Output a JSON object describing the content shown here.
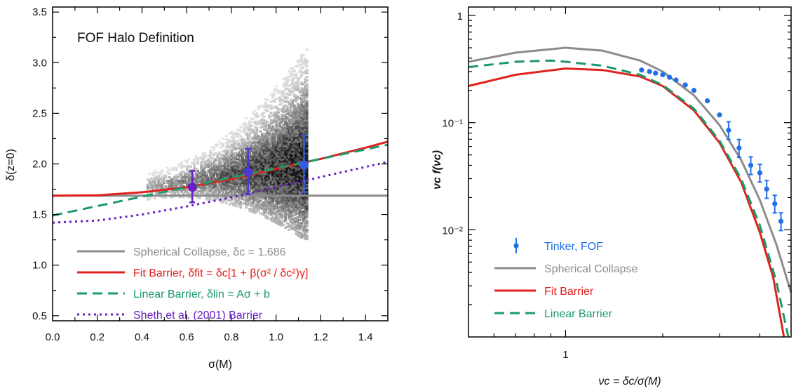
{
  "chart_data": [
    {
      "type": "scatter",
      "title": "FOF Halo Definition",
      "xlabel": "σ(M)",
      "ylabel": "δ(z=0)",
      "xlim": [
        0.0,
        1.5
      ],
      "ylim": [
        0.45,
        3.55
      ],
      "xticks": [
        "0.0",
        "0.2",
        "0.4",
        "0.6",
        "0.8",
        "1.0",
        "1.2",
        "1.4"
      ],
      "yticks": [
        "0.5",
        "1.0",
        "1.5",
        "2.0",
        "2.5",
        "3.0",
        "3.5"
      ],
      "legend_position": "bottom-left",
      "density_region": {
        "description_values": {
          "x_range": [
            0.42,
            1.14
          ],
          "y_center_at_x_min": 1.75,
          "y_center_at_x_max": 2.0
        }
      },
      "series": [
        {
          "name": "Spherical Collapse",
          "legend_label": "Spherical Collapse, δc = 1.686",
          "color": "#8c8c8c",
          "style": "solid",
          "x": [
            0.0,
            1.5
          ],
          "y": [
            1.686,
            1.686
          ]
        },
        {
          "name": "Fit Barrier",
          "legend_label": "Fit Barrier, δfit = δc[1 + β(σ² / δc²)γ]",
          "color": "#e0211d",
          "style": "solid",
          "x": [
            0.0,
            0.2,
            0.4,
            0.6,
            0.8,
            1.0,
            1.2,
            1.4,
            1.5
          ],
          "y": [
            1.686,
            1.69,
            1.72,
            1.77,
            1.85,
            1.95,
            2.05,
            2.16,
            2.22
          ]
        },
        {
          "name": "Linear Barrier",
          "legend_label": "Linear Barrier, δlin = Aσ + b",
          "color": "#1a9a6c",
          "style": "dashed",
          "x": [
            0.0,
            1.5
          ],
          "y": [
            1.49,
            2.19
          ]
        },
        {
          "name": "Sheth et al. (2001) Barrier",
          "legend_label": "Sheth et al. (2001) Barrier",
          "color": "#6a1fc4",
          "style": "dotted",
          "x": [
            0.0,
            0.2,
            0.4,
            0.6,
            0.8,
            1.0,
            1.2,
            1.4,
            1.5
          ],
          "y": [
            1.42,
            1.44,
            1.5,
            1.58,
            1.67,
            1.77,
            1.87,
            1.97,
            2.02
          ]
        }
      ],
      "points": [
        {
          "x": 0.625,
          "y": 1.77,
          "yerr_low": 1.62,
          "yerr_high": 1.93,
          "color": "#6a1fc4"
        },
        {
          "x": 0.875,
          "y": 1.92,
          "yerr_low": 1.7,
          "yerr_high": 2.15,
          "color": "#4a3ad6"
        },
        {
          "x": 1.125,
          "y": 1.99,
          "yerr_low": 1.72,
          "yerr_high": 2.28,
          "color": "#2f5ee0"
        }
      ]
    },
    {
      "type": "line",
      "title": "",
      "xlabel": "νc = δc/σ(M)",
      "ylabel": "νc f(νc)",
      "xscale": "log",
      "yscale": "log",
      "xlim": [
        0.5,
        5.0
      ],
      "ylim": [
        0.001,
        1.2
      ],
      "xticks": [
        "1"
      ],
      "yticks": [
        "1",
        "10⁻¹",
        "10⁻²"
      ],
      "legend_position": "bottom-left",
      "series": [
        {
          "name": "Tinker, FOF",
          "color": "#1f6fe8",
          "style": "points-errorbars",
          "x": [
            1.72,
            1.82,
            1.9,
            2.0,
            2.1,
            2.2,
            2.35,
            2.5,
            2.75,
            3.0,
            3.2,
            3.45,
            3.75,
            4.0,
            4.2,
            4.45,
            4.65
          ],
          "y": [
            0.31,
            0.3,
            0.29,
            0.28,
            0.265,
            0.25,
            0.225,
            0.2,
            0.16,
            0.118,
            0.085,
            0.058,
            0.04,
            0.034,
            0.024,
            0.0175,
            0.012
          ]
        },
        {
          "name": "Spherical Collapse",
          "color": "#8c8c8c",
          "style": "solid",
          "x": [
            0.5,
            0.7,
            1.0,
            1.3,
            1.7,
            2.0,
            2.5,
            3.0,
            3.5,
            4.0,
            4.5,
            5.0
          ],
          "y": [
            0.37,
            0.45,
            0.5,
            0.47,
            0.38,
            0.3,
            0.18,
            0.095,
            0.045,
            0.019,
            0.0073,
            0.0026
          ]
        },
        {
          "name": "Fit Barrier",
          "color": "#e0211d",
          "style": "solid",
          "x": [
            0.5,
            0.7,
            1.0,
            1.3,
            1.7,
            2.0,
            2.5,
            3.0,
            3.5,
            4.0,
            4.4,
            4.75
          ],
          "y": [
            0.22,
            0.28,
            0.32,
            0.31,
            0.27,
            0.22,
            0.13,
            0.065,
            0.028,
            0.0095,
            0.0036,
            0.001
          ]
        },
        {
          "name": "Linear Barrier",
          "color": "#1a9a6c",
          "style": "dashed",
          "x": [
            0.5,
            0.7,
            0.9,
            1.0,
            1.3,
            1.7,
            2.0,
            2.5,
            3.0,
            3.5,
            4.0,
            4.5,
            4.9
          ],
          "y": [
            0.33,
            0.37,
            0.38,
            0.37,
            0.34,
            0.28,
            0.225,
            0.135,
            0.068,
            0.03,
            0.011,
            0.0033,
            0.001
          ]
        }
      ]
    }
  ]
}
